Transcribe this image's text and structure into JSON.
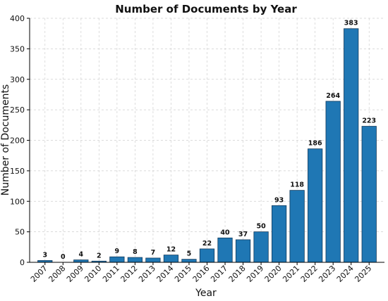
{
  "chart_data": {
    "type": "bar",
    "title": "Number of Documents by Year",
    "xlabel": "Year",
    "ylabel": "Number of Documents",
    "categories": [
      "2007",
      "2008",
      "2009",
      "2010",
      "2011",
      "2012",
      "2013",
      "2014",
      "2015",
      "2016",
      "2017",
      "2018",
      "2019",
      "2020",
      "2021",
      "2022",
      "2023",
      "2024",
      "2025"
    ],
    "values": [
      3,
      0,
      4,
      2,
      9,
      8,
      7,
      12,
      5,
      22,
      40,
      37,
      50,
      93,
      118,
      186,
      264,
      383,
      223
    ],
    "ylim": [
      0,
      400
    ],
    "yticks": [
      0,
      50,
      100,
      150,
      200,
      250,
      300,
      350,
      400
    ],
    "grid": true,
    "bar_color": "#1f77b4"
  }
}
